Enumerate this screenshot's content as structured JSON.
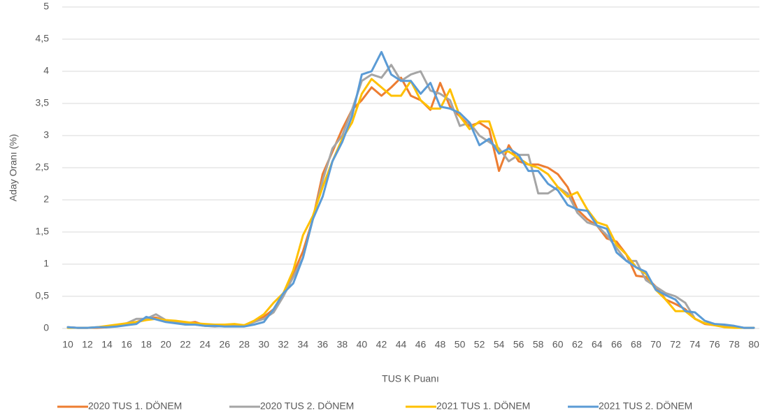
{
  "chart_data": {
    "type": "line",
    "x_label": "TUS K Puanı",
    "y_label": "Aday Oranı (%)",
    "x": [
      10,
      11,
      12,
      13,
      14,
      15,
      16,
      17,
      18,
      19,
      20,
      21,
      22,
      23,
      24,
      25,
      26,
      27,
      28,
      29,
      30,
      31,
      32,
      33,
      34,
      35,
      36,
      37,
      38,
      39,
      40,
      41,
      42,
      43,
      44,
      45,
      46,
      47,
      48,
      49,
      50,
      51,
      52,
      53,
      54,
      55,
      56,
      57,
      58,
      59,
      60,
      61,
      62,
      63,
      64,
      65,
      66,
      67,
      68,
      69,
      70,
      71,
      72,
      73,
      74,
      75,
      76,
      77,
      78,
      79,
      80
    ],
    "xlim": [
      10,
      80
    ],
    "xticks": [
      10,
      12,
      14,
      16,
      18,
      20,
      22,
      24,
      26,
      28,
      30,
      32,
      34,
      36,
      38,
      40,
      42,
      44,
      46,
      48,
      50,
      52,
      54,
      56,
      58,
      60,
      62,
      64,
      66,
      68,
      70,
      72,
      74,
      76,
      78,
      80
    ],
    "ylim": [
      0,
      5
    ],
    "yticks": [
      0,
      {
        "value": 0.5,
        "label": "0,5"
      },
      1,
      {
        "value": 1.5,
        "label": "1,5"
      },
      2,
      {
        "value": 2.5,
        "label": "2,5"
      },
      3,
      {
        "value": 3.5,
        "label": "3,5"
      },
      4,
      {
        "value": 4.5,
        "label": "4,5"
      },
      5
    ],
    "grid": true,
    "legend": "bottom",
    "series": [
      {
        "name": "2020 TUS 1. DÖNEM",
        "color": "#ed7d31",
        "values": [
          0.02,
          0.01,
          0.01,
          0.01,
          0.02,
          0.04,
          0.07,
          0.1,
          0.15,
          0.17,
          0.12,
          0.1,
          0.08,
          0.1,
          0.05,
          0.04,
          0.04,
          0.05,
          0.05,
          0.1,
          0.18,
          0.3,
          0.55,
          0.85,
          1.2,
          1.7,
          2.4,
          2.75,
          3.1,
          3.4,
          3.55,
          3.75,
          3.62,
          3.75,
          3.9,
          3.62,
          3.55,
          3.4,
          3.82,
          3.45,
          3.3,
          3.15,
          3.2,
          3.1,
          2.45,
          2.85,
          2.6,
          2.55,
          2.55,
          2.5,
          2.4,
          2.2,
          1.85,
          1.7,
          1.6,
          1.4,
          1.35,
          1.15,
          0.82,
          0.8,
          0.65,
          0.45,
          0.38,
          0.3,
          0.15,
          0.07,
          0.05,
          0.03,
          0.02,
          0.01,
          0.01
        ]
      },
      {
        "name": "2020 TUS 2. DÖNEM",
        "color": "#a5a5a5",
        "values": [
          0.02,
          0.01,
          0.01,
          0.02,
          0.03,
          0.05,
          0.08,
          0.15,
          0.15,
          0.22,
          0.13,
          0.1,
          0.07,
          0.06,
          0.04,
          0.03,
          0.04,
          0.04,
          0.04,
          0.1,
          0.15,
          0.25,
          0.5,
          0.8,
          1.1,
          1.7,
          2.3,
          2.8,
          3.0,
          3.4,
          3.85,
          3.95,
          3.9,
          4.1,
          3.85,
          3.95,
          4.0,
          3.7,
          3.65,
          3.55,
          3.15,
          3.2,
          3.0,
          2.9,
          2.8,
          2.6,
          2.7,
          2.7,
          2.1,
          2.1,
          2.2,
          2.1,
          1.8,
          1.65,
          1.6,
          1.45,
          1.25,
          1.05,
          1.05,
          0.75,
          0.65,
          0.55,
          0.5,
          0.4,
          0.15,
          0.08,
          0.06,
          0.04,
          0.03,
          0.01,
          0.01
        ]
      },
      {
        "name": "2021 TUS 1. DÖNEM",
        "color": "#ffc000",
        "values": [
          0.01,
          0.01,
          0.01,
          0.02,
          0.04,
          0.06,
          0.08,
          0.1,
          0.13,
          0.15,
          0.13,
          0.12,
          0.1,
          0.08,
          0.07,
          0.06,
          0.06,
          0.07,
          0.05,
          0.12,
          0.22,
          0.4,
          0.55,
          0.9,
          1.45,
          1.75,
          2.2,
          2.6,
          2.95,
          3.2,
          3.65,
          3.88,
          3.75,
          3.62,
          3.62,
          3.85,
          3.55,
          3.42,
          3.42,
          3.72,
          3.3,
          3.1,
          3.22,
          3.22,
          2.75,
          2.75,
          2.65,
          2.55,
          2.5,
          2.4,
          2.2,
          2.05,
          2.12,
          1.85,
          1.65,
          1.6,
          1.3,
          1.15,
          0.95,
          0.85,
          0.6,
          0.45,
          0.27,
          0.27,
          0.15,
          0.08,
          0.05,
          0.02,
          0.01,
          0.01,
          0.01
        ]
      },
      {
        "name": "2021 TUS 2. DÖNEM",
        "color": "#5b9bd5",
        "values": [
          0.02,
          0.01,
          0.01,
          0.02,
          0.02,
          0.03,
          0.05,
          0.07,
          0.18,
          0.14,
          0.1,
          0.08,
          0.06,
          0.06,
          0.04,
          0.04,
          0.03,
          0.03,
          0.03,
          0.06,
          0.1,
          0.3,
          0.55,
          0.7,
          1.1,
          1.7,
          2.05,
          2.6,
          2.9,
          3.3,
          3.95,
          4.0,
          4.3,
          3.95,
          3.85,
          3.85,
          3.65,
          3.82,
          3.45,
          3.42,
          3.35,
          3.2,
          2.85,
          2.95,
          2.72,
          2.8,
          2.7,
          2.45,
          2.45,
          2.25,
          2.15,
          1.92,
          1.85,
          1.83,
          1.6,
          1.55,
          1.18,
          1.05,
          0.95,
          0.88,
          0.6,
          0.52,
          0.45,
          0.27,
          0.25,
          0.12,
          0.07,
          0.06,
          0.04,
          0.01,
          0.01
        ]
      }
    ]
  }
}
